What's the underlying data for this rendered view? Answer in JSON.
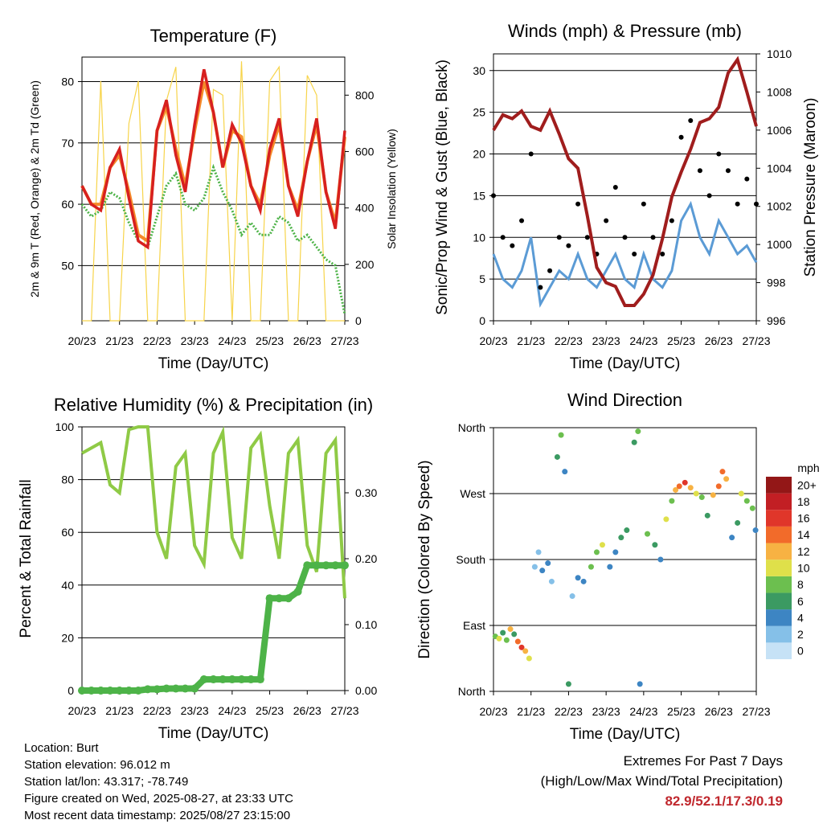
{
  "colors": {
    "temp2m": "#d7201f",
    "temp9m": "#f58a2a",
    "dewpoint": "#4db348",
    "solar": "#f7d44a",
    "wind": "#000000",
    "gust": "#5b9bd5",
    "pressure": "#a01d1d",
    "rh": "#8fca46",
    "precip": "#4db348",
    "extremes": "#c0272d"
  },
  "x_ticks": [
    "20/23",
    "21/23",
    "22/23",
    "23/23",
    "24/23",
    "25/23",
    "26/23",
    "27/23"
  ],
  "chart_data": [
    {
      "type": "line",
      "title": "Temperature (F)",
      "xlabel": "Time (Day/UTC)",
      "ylabel": "2m & 9m T (Red, Orange) & 2m Td (Green)",
      "y2label": "Solar Insolation (Yellow)",
      "ylim": [
        41,
        84
      ],
      "y2lim": [
        0,
        935
      ],
      "y_ticks": [
        "50",
        "60",
        "70",
        "80"
      ],
      "y2_ticks": [
        "0",
        "200",
        "400",
        "600",
        "800"
      ],
      "x": [
        0,
        0.25,
        0.5,
        0.75,
        1,
        1.25,
        1.5,
        1.75,
        2,
        2.25,
        2.5,
        2.75,
        3,
        3.25,
        3.5,
        3.75,
        4,
        4.25,
        4.5,
        4.75,
        5,
        5.25,
        5.5,
        5.75,
        6,
        6.25,
        6.5,
        6.75,
        7
      ],
      "series": [
        {
          "name": "2m T",
          "values": [
            63,
            60,
            59,
            66,
            69,
            61,
            54,
            53,
            72,
            77,
            68,
            62,
            73,
            82,
            75,
            66,
            73,
            70,
            63,
            59,
            69,
            74,
            63,
            58,
            67,
            74,
            62,
            56,
            72
          ]
        },
        {
          "name": "9m T",
          "values": [
            63,
            60,
            60,
            66,
            68,
            62,
            55,
            54,
            72,
            76,
            69,
            63,
            72,
            80,
            75,
            66,
            72,
            71,
            63,
            60,
            68,
            73,
            63,
            59,
            67,
            73,
            62,
            57,
            71
          ]
        },
        {
          "name": "2m Td",
          "values": [
            60,
            58,
            59,
            62,
            61,
            57,
            54,
            53,
            58,
            63,
            65,
            60,
            59,
            61,
            66,
            62,
            59,
            55,
            57,
            55,
            55,
            58,
            57,
            54,
            55,
            53,
            51,
            50,
            42
          ]
        },
        {
          "name": "Solar Insolation",
          "values": [
            0,
            0,
            850,
            0,
            0,
            700,
            850,
            0,
            0,
            780,
            900,
            0,
            0,
            0,
            820,
            800,
            0,
            920,
            0,
            0,
            850,
            900,
            0,
            0,
            870,
            800,
            0,
            0,
            0
          ]
        }
      ]
    },
    {
      "type": "line",
      "title": "Winds (mph) & Pressure (mb)",
      "xlabel": "Time (Day/UTC)",
      "ylabel": "Sonic/Prop Wind & Gust (Blue, Black)",
      "y2label": "Station Pressure (Maroon)",
      "ylim": [
        0,
        32
      ],
      "y2lim": [
        996,
        1010
      ],
      "y_ticks": [
        "0",
        "5",
        "10",
        "15",
        "20",
        "25",
        "30"
      ],
      "y2_ticks": [
        "996",
        "998",
        "1000",
        "1002",
        "1004",
        "1006",
        "1008",
        "1010"
      ],
      "x": [
        0,
        0.25,
        0.5,
        0.75,
        1,
        1.25,
        1.5,
        1.75,
        2,
        2.25,
        2.5,
        2.75,
        3,
        3.25,
        3.5,
        3.75,
        4,
        4.25,
        4.5,
        4.75,
        5,
        5.25,
        5.5,
        5.75,
        6,
        6.25,
        6.5,
        6.75,
        7
      ],
      "series": [
        {
          "name": "Sustained Wind",
          "values": [
            8,
            5,
            4,
            6,
            10,
            2,
            4,
            6,
            5,
            8,
            5,
            4,
            6,
            8,
            5,
            4,
            8,
            5,
            4,
            6,
            12,
            14,
            10,
            8,
            12,
            10,
            8,
            9,
            7
          ]
        },
        {
          "name": "Gust",
          "values": [
            15,
            10,
            9,
            12,
            20,
            4,
            6,
            10,
            9,
            14,
            10,
            8,
            12,
            16,
            10,
            8,
            14,
            10,
            8,
            12,
            22,
            24,
            18,
            15,
            20,
            18,
            14,
            17,
            14
          ]
        },
        {
          "name": "Station Pressure",
          "values": [
            1006,
            1006.8,
            1006.6,
            1007,
            1006.2,
            1006,
            1007,
            1005.8,
            1004.5,
            1004,
            1001.5,
            998.8,
            998,
            997.8,
            996.8,
            996.8,
            997.4,
            998.4,
            1000.3,
            1002.5,
            1003.8,
            1005,
            1006.4,
            1006.6,
            1007.2,
            1009,
            1009.7,
            1008,
            1006.2
          ]
        }
      ]
    },
    {
      "type": "line",
      "title": "Relative Humidity (%) & Precipitation (in)",
      "xlabel": "Time (Day/UTC)",
      "ylabel": "Percent & Total Rainfall",
      "ylim": [
        0,
        100
      ],
      "y2lim": [
        0,
        0.4
      ],
      "y_ticks": [
        "0",
        "20",
        "40",
        "60",
        "80",
        "100"
      ],
      "y2_ticks": [
        "0.00",
        "0.10",
        "0.20",
        "0.30"
      ],
      "x": [
        0,
        0.25,
        0.5,
        0.75,
        1,
        1.25,
        1.5,
        1.75,
        2,
        2.25,
        2.5,
        2.75,
        3,
        3.25,
        3.5,
        3.75,
        4,
        4.25,
        4.5,
        4.75,
        5,
        5.25,
        5.5,
        5.75,
        6,
        6.25,
        6.5,
        6.75,
        7
      ],
      "series": [
        {
          "name": "Relative Humidity",
          "values": [
            90,
            92,
            94,
            78,
            75,
            99,
            100,
            100,
            60,
            50,
            85,
            90,
            55,
            48,
            90,
            98,
            58,
            50,
            92,
            97,
            70,
            50,
            90,
            95,
            55,
            45,
            90,
            95,
            35
          ]
        },
        {
          "name": "Total Rainfall",
          "values": [
            0,
            0,
            0,
            0,
            0,
            0,
            0,
            0.002,
            0.002,
            0.003,
            0.003,
            0.003,
            0.003,
            0.017,
            0.017,
            0.017,
            0.017,
            0.017,
            0.017,
            0.017,
            0.14,
            0.14,
            0.14,
            0.15,
            0.19,
            0.19,
            0.19,
            0.19,
            0.19
          ]
        }
      ]
    },
    {
      "type": "scatter",
      "title": "Wind Direction",
      "xlabel": "Time (Day/UTC)",
      "ylabel": "Direction (Colored By Speed)",
      "ylim": [
        0,
        360
      ],
      "y_ticks": [
        "North",
        "East",
        "South",
        "West",
        "North"
      ],
      "colorbar_title": "mph",
      "colorbar_labels": [
        "0",
        "2",
        "4",
        "6",
        "8",
        "10",
        "12",
        "14",
        "16",
        "18",
        "20+"
      ],
      "colorbar_colors": [
        "#c6e2f6",
        "#85c0e8",
        "#3d85c3",
        "#3b9a62",
        "#6cbf4f",
        "#dfe04a",
        "#f7b243",
        "#f26b2a",
        "#e0362a",
        "#c21f24",
        "#931717"
      ],
      "points": [
        {
          "x": 0.05,
          "dir": 75,
          "spd": 8
        },
        {
          "x": 0.15,
          "dir": 72,
          "spd": 10
        },
        {
          "x": 0.25,
          "dir": 80,
          "spd": 6
        },
        {
          "x": 0.35,
          "dir": 70,
          "spd": 9
        },
        {
          "x": 0.45,
          "dir": 85,
          "spd": 12
        },
        {
          "x": 0.55,
          "dir": 78,
          "spd": 7
        },
        {
          "x": 0.65,
          "dir": 68,
          "spd": 14
        },
        {
          "x": 0.75,
          "dir": 60,
          "spd": 16
        },
        {
          "x": 0.85,
          "dir": 55,
          "spd": 13
        },
        {
          "x": 0.95,
          "dir": 45,
          "spd": 10
        },
        {
          "x": 1.1,
          "dir": 170,
          "spd": 3
        },
        {
          "x": 1.2,
          "dir": 190,
          "spd": 2
        },
        {
          "x": 1.3,
          "dir": 165,
          "spd": 4
        },
        {
          "x": 1.45,
          "dir": 175,
          "spd": 5
        },
        {
          "x": 1.55,
          "dir": 150,
          "spd": 3
        },
        {
          "x": 1.7,
          "dir": 320,
          "spd": 6
        },
        {
          "x": 1.8,
          "dir": 350,
          "spd": 8
        },
        {
          "x": 1.9,
          "dir": 300,
          "spd": 4
        },
        {
          "x": 2.0,
          "dir": 10,
          "spd": 7
        },
        {
          "x": 2.1,
          "dir": 130,
          "spd": 3
        },
        {
          "x": 2.25,
          "dir": 155,
          "spd": 4
        },
        {
          "x": 2.4,
          "dir": 150,
          "spd": 5
        },
        {
          "x": 2.6,
          "dir": 170,
          "spd": 9
        },
        {
          "x": 2.75,
          "dir": 190,
          "spd": 8
        },
        {
          "x": 2.9,
          "dir": 200,
          "spd": 11
        },
        {
          "x": 3.1,
          "dir": 170,
          "spd": 4
        },
        {
          "x": 3.25,
          "dir": 190,
          "spd": 5
        },
        {
          "x": 3.4,
          "dir": 210,
          "spd": 7
        },
        {
          "x": 3.55,
          "dir": 220,
          "spd": 6
        },
        {
          "x": 3.75,
          "dir": 340,
          "spd": 6
        },
        {
          "x": 3.85,
          "dir": 355,
          "spd": 8
        },
        {
          "x": 3.9,
          "dir": 10,
          "spd": 5
        },
        {
          "x": 4.1,
          "dir": 215,
          "spd": 8
        },
        {
          "x": 4.3,
          "dir": 200,
          "spd": 6
        },
        {
          "x": 4.45,
          "dir": 180,
          "spd": 4
        },
        {
          "x": 4.6,
          "dir": 235,
          "spd": 10
        },
        {
          "x": 4.75,
          "dir": 260,
          "spd": 8
        },
        {
          "x": 4.85,
          "dir": 275,
          "spd": 12
        },
        {
          "x": 4.95,
          "dir": 280,
          "spd": 14
        },
        {
          "x": 5.1,
          "dir": 285,
          "spd": 16
        },
        {
          "x": 5.25,
          "dir": 278,
          "spd": 13
        },
        {
          "x": 5.4,
          "dir": 270,
          "spd": 11
        },
        {
          "x": 5.55,
          "dir": 265,
          "spd": 9
        },
        {
          "x": 5.7,
          "dir": 240,
          "spd": 6
        },
        {
          "x": 5.85,
          "dir": 268,
          "spd": 12
        },
        {
          "x": 6.0,
          "dir": 280,
          "spd": 15
        },
        {
          "x": 6.1,
          "dir": 300,
          "spd": 14
        },
        {
          "x": 6.2,
          "dir": 290,
          "spd": 12
        },
        {
          "x": 6.35,
          "dir": 210,
          "spd": 5
        },
        {
          "x": 6.5,
          "dir": 230,
          "spd": 6
        },
        {
          "x": 6.6,
          "dir": 270,
          "spd": 10
        },
        {
          "x": 6.75,
          "dir": 260,
          "spd": 8
        },
        {
          "x": 6.9,
          "dir": 250,
          "spd": 9
        },
        {
          "x": 6.98,
          "dir": 220,
          "spd": 5
        }
      ]
    }
  ],
  "footer": {
    "location": "Location: Burt",
    "elevation": "Station elevation: 96.012 m",
    "latlon": "Station lat/lon: 43.317; -78.749",
    "created": "Figure created on Wed, 2025-08-27, at 23:33 UTC",
    "recent": "Most recent data timestamp: 2025/08/27 23:15:00"
  },
  "extremes": {
    "title": "Extremes For Past 7 Days",
    "subtitle": "(High/Low/Max Wind/Total Precipitation)",
    "values": "82.9/52.1/17.3/0.19"
  }
}
